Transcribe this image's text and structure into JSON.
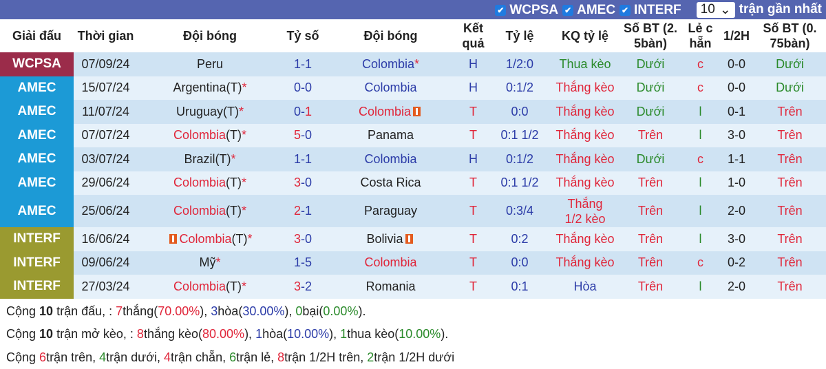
{
  "filters": {
    "items": [
      {
        "label": "WCPSA",
        "checked": true
      },
      {
        "label": "AMEC",
        "checked": true
      },
      {
        "label": "INTERF",
        "checked": true
      }
    ],
    "count_value": "10",
    "count_suffix": "trận gần nhất"
  },
  "colors": {
    "WCPSA": "#9b2c4a",
    "AMEC": "#1c9ad6",
    "INTERF": "#9a9a30",
    "red": "#e0263a",
    "blue": "#2c3ca8",
    "green": "#2a8a2a",
    "header_bar": "#5565b0"
  },
  "headers": [
    "Giải đấu",
    "Thời gian",
    "Đội bóng",
    "Tỷ số",
    "Đội bóng",
    "Kết quả",
    "Tỷ lệ",
    "KQ tỷ lệ",
    "Số BT (2. 5bàn)",
    "Lẻ c hẵn",
    "1/2H",
    "Số BT (0. 75bàn)"
  ],
  "rows": [
    {
      "league": "WCPSA",
      "date": "07/09/24",
      "home": {
        "name": "Peru",
        "tag": "",
        "star": "",
        "color": "dark",
        "card": false
      },
      "score": [
        "1",
        "1"
      ],
      "score_colors": [
        "blue",
        "blue"
      ],
      "away": {
        "name": "Colombia",
        "star": "*",
        "color": "blue",
        "card": false
      },
      "result": "H",
      "result_color": "blue",
      "ratio": "1/2:0",
      "kq": "Thua kèo",
      "kq_color": "green",
      "bt": "Dưới",
      "bt_color": "green",
      "le": "c",
      "le_color": "red",
      "half": "0-0",
      "bt75": "Dưới",
      "bt75_color": "green"
    },
    {
      "league": "AMEC",
      "date": "15/07/24",
      "home": {
        "name": "Argentina",
        "tag": "(T)",
        "star": "*",
        "color": "dark",
        "card": false
      },
      "score": [
        "0",
        "0"
      ],
      "score_colors": [
        "blue",
        "blue"
      ],
      "away": {
        "name": "Colombia",
        "star": "",
        "color": "blue",
        "card": false
      },
      "result": "H",
      "result_color": "blue",
      "ratio": "0:1/2",
      "kq": "Thắng kèo",
      "kq_color": "red",
      "bt": "Dưới",
      "bt_color": "green",
      "le": "c",
      "le_color": "red",
      "half": "0-0",
      "bt75": "Dưới",
      "bt75_color": "green"
    },
    {
      "league": "AMEC",
      "date": "11/07/24",
      "home": {
        "name": "Uruguay",
        "tag": "(T)",
        "star": "*",
        "color": "dark",
        "card": false
      },
      "score": [
        "0",
        "1"
      ],
      "score_colors": [
        "blue",
        "red"
      ],
      "away": {
        "name": "Colombia",
        "star": "",
        "color": "red",
        "card": true
      },
      "result": "T",
      "result_color": "red",
      "ratio": "0:0",
      "kq": "Thắng kèo",
      "kq_color": "red",
      "bt": "Dưới",
      "bt_color": "green",
      "le": "l",
      "le_color": "green",
      "half": "0-1",
      "bt75": "Trên",
      "bt75_color": "red"
    },
    {
      "league": "AMEC",
      "date": "07/07/24",
      "home": {
        "name": "Colombia",
        "tag": "(T)",
        "star": "*",
        "color": "red",
        "card": false
      },
      "score": [
        "5",
        "0"
      ],
      "score_colors": [
        "red",
        "blue"
      ],
      "away": {
        "name": "Panama",
        "star": "",
        "color": "dark",
        "card": false
      },
      "result": "T",
      "result_color": "red",
      "ratio": "0:1 1/2",
      "kq": "Thắng kèo",
      "kq_color": "red",
      "bt": "Trên",
      "bt_color": "red",
      "le": "l",
      "le_color": "green",
      "half": "3-0",
      "bt75": "Trên",
      "bt75_color": "red"
    },
    {
      "league": "AMEC",
      "date": "03/07/24",
      "home": {
        "name": "Brazil",
        "tag": "(T)",
        "star": "*",
        "color": "dark",
        "card": false
      },
      "score": [
        "1",
        "1"
      ],
      "score_colors": [
        "blue",
        "blue"
      ],
      "away": {
        "name": "Colombia",
        "star": "",
        "color": "blue",
        "card": false
      },
      "result": "H",
      "result_color": "blue",
      "ratio": "0:1/2",
      "kq": "Thắng kèo",
      "kq_color": "red",
      "bt": "Dưới",
      "bt_color": "green",
      "le": "c",
      "le_color": "red",
      "half": "1-1",
      "bt75": "Trên",
      "bt75_color": "red"
    },
    {
      "league": "AMEC",
      "date": "29/06/24",
      "home": {
        "name": "Colombia",
        "tag": "(T)",
        "star": "*",
        "color": "red",
        "card": false
      },
      "score": [
        "3",
        "0"
      ],
      "score_colors": [
        "red",
        "blue"
      ],
      "away": {
        "name": "Costa Rica",
        "star": "",
        "color": "dark",
        "card": false
      },
      "result": "T",
      "result_color": "red",
      "ratio": "0:1 1/2",
      "kq": "Thắng kèo",
      "kq_color": "red",
      "bt": "Trên",
      "bt_color": "red",
      "le": "l",
      "le_color": "green",
      "half": "1-0",
      "bt75": "Trên",
      "bt75_color": "red"
    },
    {
      "league": "AMEC",
      "date": "25/06/24",
      "home": {
        "name": "Colombia",
        "tag": "(T)",
        "star": "*",
        "color": "red",
        "card": false
      },
      "score": [
        "2",
        "1"
      ],
      "score_colors": [
        "red",
        "blue"
      ],
      "away": {
        "name": "Paraguay",
        "star": "",
        "color": "dark",
        "card": false
      },
      "result": "T",
      "result_color": "red",
      "ratio": "0:3/4",
      "kq": "Thắng 1/2 kèo",
      "kq_color": "red",
      "bt": "Trên",
      "bt_color": "red",
      "le": "l",
      "le_color": "green",
      "half": "2-0",
      "bt75": "Trên",
      "bt75_color": "red"
    },
    {
      "league": "INTERF",
      "date": "16/06/24",
      "home": {
        "name": "Colombia",
        "tag": "(T)",
        "star": "*",
        "color": "red",
        "card": true
      },
      "score": [
        "3",
        "0"
      ],
      "score_colors": [
        "red",
        "blue"
      ],
      "away": {
        "name": "Bolivia",
        "star": "",
        "color": "dark",
        "card": true
      },
      "result": "T",
      "result_color": "red",
      "ratio": "0:2",
      "kq": "Thắng kèo",
      "kq_color": "red",
      "bt": "Trên",
      "bt_color": "red",
      "le": "l",
      "le_color": "green",
      "half": "3-0",
      "bt75": "Trên",
      "bt75_color": "red"
    },
    {
      "league": "INTERF",
      "date": "09/06/24",
      "home": {
        "name": "Mỹ",
        "tag": "",
        "star": "*",
        "color": "dark",
        "card": false
      },
      "score": [
        "1",
        "5"
      ],
      "score_colors": [
        "blue",
        "blue"
      ],
      "away": {
        "name": "Colombia",
        "star": "",
        "color": "red",
        "card": false
      },
      "result": "T",
      "result_color": "red",
      "ratio": "0:0",
      "kq": "Thắng kèo",
      "kq_color": "red",
      "bt": "Trên",
      "bt_color": "red",
      "le": "c",
      "le_color": "red",
      "half": "0-2",
      "bt75": "Trên",
      "bt75_color": "red"
    },
    {
      "league": "INTERF",
      "date": "27/03/24",
      "home": {
        "name": "Colombia",
        "tag": "(T)",
        "star": "*",
        "color": "red",
        "card": false
      },
      "score": [
        "3",
        "2"
      ],
      "score_colors": [
        "red",
        "blue"
      ],
      "away": {
        "name": "Romania",
        "star": "",
        "color": "dark",
        "card": false
      },
      "result": "T",
      "result_color": "red",
      "ratio": "0:1",
      "kq": "Hòa",
      "kq_color": "blue",
      "bt": "Trên",
      "bt_color": "red",
      "le": "l",
      "le_color": "green",
      "half": "2-0",
      "bt75": "Trên",
      "bt75_color": "red"
    }
  ],
  "summary": [
    [
      {
        "t": "Cộng ",
        "c": ""
      },
      {
        "t": "10",
        "c": "b"
      },
      {
        "t": " trận đấu, : ",
        "c": ""
      },
      {
        "t": "7",
        "c": "red"
      },
      {
        "t": "thắng(",
        "c": ""
      },
      {
        "t": "70.00%",
        "c": "red"
      },
      {
        "t": "), ",
        "c": ""
      },
      {
        "t": "3",
        "c": "blue"
      },
      {
        "t": "hòa(",
        "c": ""
      },
      {
        "t": "30.00%",
        "c": "blue"
      },
      {
        "t": "), ",
        "c": ""
      },
      {
        "t": "0",
        "c": "green"
      },
      {
        "t": "bại(",
        "c": ""
      },
      {
        "t": "0.00%",
        "c": "green"
      },
      {
        "t": ").",
        "c": ""
      }
    ],
    [
      {
        "t": "Cộng ",
        "c": ""
      },
      {
        "t": "10",
        "c": "b"
      },
      {
        "t": " trận mở kèo, : ",
        "c": ""
      },
      {
        "t": "8",
        "c": "red"
      },
      {
        "t": "thắng kèo(",
        "c": ""
      },
      {
        "t": "80.00%",
        "c": "red"
      },
      {
        "t": "), ",
        "c": ""
      },
      {
        "t": "1",
        "c": "blue"
      },
      {
        "t": "hòa(",
        "c": ""
      },
      {
        "t": "10.00%",
        "c": "blue"
      },
      {
        "t": "), ",
        "c": ""
      },
      {
        "t": "1",
        "c": "green"
      },
      {
        "t": "thua kèo(",
        "c": ""
      },
      {
        "t": "10.00%",
        "c": "green"
      },
      {
        "t": ").",
        "c": ""
      }
    ],
    [
      {
        "t": "Cộng ",
        "c": ""
      },
      {
        "t": "6",
        "c": "red"
      },
      {
        "t": "trận trên, ",
        "c": ""
      },
      {
        "t": "4",
        "c": "green"
      },
      {
        "t": "trận dưới, ",
        "c": ""
      },
      {
        "t": "4",
        "c": "red"
      },
      {
        "t": "trận chẵn, ",
        "c": ""
      },
      {
        "t": "6",
        "c": "green"
      },
      {
        "t": "trận lẻ, ",
        "c": ""
      },
      {
        "t": "8",
        "c": "red"
      },
      {
        "t": "trận 1/2H trên, ",
        "c": ""
      },
      {
        "t": "2",
        "c": "green"
      },
      {
        "t": "trận 1/2H dưới",
        "c": ""
      }
    ]
  ]
}
